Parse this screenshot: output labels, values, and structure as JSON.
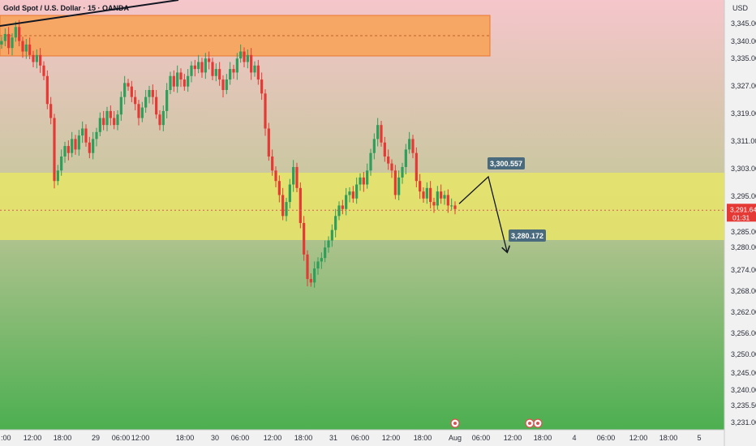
{
  "chart_title": "Gold Spot / U.S. Dollar · 15 · OANDA",
  "currency_label": "USD",
  "colors": {
    "bg_top": "#f5c6cb",
    "bg_mid": "#c6c79c",
    "bg_bottom": "#4caf50",
    "up": "#2e9e5b",
    "down": "#e53935",
    "resistance_zone": "#f7a35a",
    "support_zone": "#e5e36a",
    "trendline": "#131722",
    "callout": "#4a6b7e",
    "price_tag": "#e53935",
    "axis_bg": "#f1f1f1"
  },
  "chart_data": {
    "type": "candlestick",
    "y_ticks": [
      "3,345.000",
      "3,340.000",
      "3,335.000",
      "3,327.000",
      "3,319.000",
      "3,311.000",
      "3,303.000",
      "3,295.000",
      "3,285.000",
      "3,280.000",
      "3,274.000",
      "3,268.000",
      "3,262.000",
      "3,256.000",
      "3,250.000",
      "3,245.000",
      "3,240.000",
      "3,235.500",
      "3,231.000"
    ],
    "x_ticks": [
      "12:00",
      "18:00",
      "29",
      "06:00",
      "12:00",
      "18:00",
      "30",
      "06:00",
      "12:00",
      "18:00",
      "31",
      "06:00",
      "12:00",
      "18:00",
      "Aug",
      "06:00",
      "12:00",
      "18:00",
      "4",
      "06:00",
      "12:00",
      "18:00",
      "5"
    ],
    "x_tick_first_partial": ":00",
    "resistance_zone": {
      "low": 3335.0,
      "high": 3347.0
    },
    "support_zone": {
      "low": 3283.5,
      "high": 3303.5
    },
    "current_price": "3,291.640",
    "countdown": "01:31",
    "projection": {
      "target_high": "3,300.557",
      "target_low": "3,280.172"
    },
    "closes": [
      3340,
      3342,
      3338,
      3341,
      3344,
      3340,
      3337,
      3339,
      3336,
      3334,
      3336,
      3333,
      3330,
      3322,
      3318,
      3300,
      3303,
      3307,
      3310,
      3308,
      3312,
      3309,
      3313,
      3315,
      3311,
      3308,
      3312,
      3314,
      3318,
      3316,
      3320,
      3318,
      3316,
      3319,
      3324,
      3328,
      3327,
      3324,
      3322,
      3318,
      3321,
      3324,
      3326,
      3324,
      3319,
      3316,
      3320,
      3326,
      3330,
      3327,
      3331,
      3329,
      3327,
      3330,
      3333,
      3332,
      3334,
      3331,
      3335,
      3334,
      3330,
      3332,
      3329,
      3326,
      3329,
      3332,
      3331,
      3335,
      3337,
      3334,
      3336,
      3331,
      3333,
      3329,
      3325,
      3315,
      3307,
      3303,
      3300,
      3296,
      3290,
      3294,
      3299,
      3304,
      3298,
      3288,
      3279,
      3272,
      3271,
      3275,
      3277,
      3278,
      3281,
      3283,
      3286,
      3290,
      3293,
      3292,
      3296,
      3297,
      3295,
      3299,
      3301,
      3299,
      3303,
      3308,
      3312,
      3316,
      3311,
      3307,
      3305,
      3303,
      3296,
      3301,
      3304,
      3309,
      3312,
      3308,
      3300,
      3297,
      3295,
      3298,
      3294,
      3293,
      3297,
      3295,
      3296,
      3293,
      3293,
      3292
    ],
    "series": [
      {
        "name": "",
        "type": "projection_path",
        "points": [
          3293.5,
          3300.557,
          3280.172
        ]
      }
    ]
  }
}
